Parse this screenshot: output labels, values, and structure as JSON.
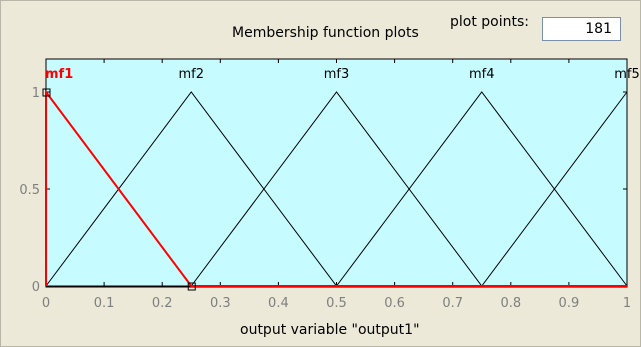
{
  "panel": {
    "title": "Membership function plots",
    "plot_points_label": "plot points:",
    "plot_points_value": "181"
  },
  "colors": {
    "plot_bg": "#c6fcff",
    "selected": "#ff0000",
    "unselected": "#000000"
  },
  "chart_data": {
    "type": "line",
    "xlabel": "output variable \"output1\"",
    "xlim": [
      0,
      1
    ],
    "ylim": [
      0,
      1
    ],
    "x_ticks": [
      "0",
      "0.1",
      "0.2",
      "0.3",
      "0.4",
      "0.5",
      "0.6",
      "0.7",
      "0.8",
      "0.9",
      "1"
    ],
    "x_tick_values": [
      0,
      0.1,
      0.2,
      0.3,
      0.4,
      0.5,
      0.6,
      0.7,
      0.8,
      0.9,
      1
    ],
    "y_ticks": [
      "0",
      "0.5",
      "1"
    ],
    "y_tick_values": [
      0,
      0.5,
      1
    ],
    "selected_series": "mf1",
    "series": [
      {
        "name": "mf1",
        "x": [
          0,
          0,
          0.25,
          1
        ],
        "y": [
          0,
          1,
          0,
          0
        ]
      },
      {
        "name": "mf2",
        "x": [
          0,
          0.25,
          0.5,
          1
        ],
        "y": [
          0,
          1,
          0,
          0
        ]
      },
      {
        "name": "mf3",
        "x": [
          0,
          0.25,
          0.5,
          0.75,
          1
        ],
        "y": [
          0,
          0,
          1,
          0,
          0
        ]
      },
      {
        "name": "mf4",
        "x": [
          0,
          0.5,
          0.75,
          1
        ],
        "y": [
          0,
          0,
          1,
          0
        ]
      },
      {
        "name": "mf5",
        "x": [
          0,
          0.75,
          1,
          1
        ],
        "y": [
          0,
          0,
          1,
          1
        ]
      }
    ],
    "labels": [
      {
        "text": "mf1",
        "x": 0,
        "series": "mf1"
      },
      {
        "text": "mf2",
        "x": 0.25,
        "series": "mf2"
      },
      {
        "text": "mf3",
        "x": 0.5,
        "series": "mf3"
      },
      {
        "text": "mf4",
        "x": 0.75,
        "series": "mf4"
      },
      {
        "text": "mf5",
        "x": 1,
        "series": "mf5"
      }
    ]
  }
}
